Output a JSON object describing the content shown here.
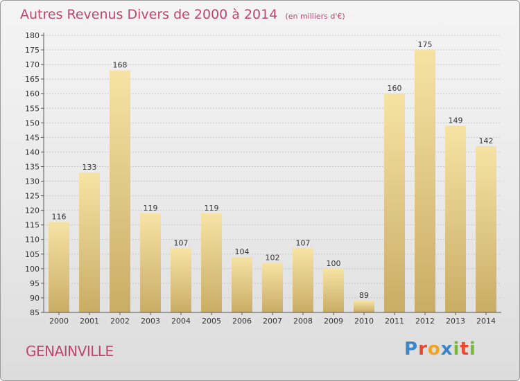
{
  "title": {
    "main": "Autres Revenus Divers de 2000 à 2014",
    "unit": "(en milliers d'€)"
  },
  "location": "GENAINVILLE",
  "logo": {
    "letters": [
      "P",
      "r",
      "o",
      "x",
      "i",
      "t",
      "i"
    ],
    "colors": [
      "#3a86c8",
      "#e8492c",
      "#f3a21f",
      "#3a86c8",
      "#7ab83c",
      "#e8492c",
      "#7ab83c"
    ]
  },
  "colors": {
    "title": "#c0446e",
    "bar_light": "#f6e3a4",
    "bar_dark": "#c9ad66",
    "axis": "#555555",
    "grid": "#c8c8c8"
  },
  "chart_data": {
    "type": "bar",
    "title": "Autres Revenus Divers de 2000 à 2014",
    "subtitle": "(en milliers d'€)",
    "xlabel": "",
    "ylabel": "",
    "categories": [
      "2000",
      "2001",
      "2002",
      "2003",
      "2004",
      "2005",
      "2006",
      "2007",
      "2008",
      "2009",
      "2010",
      "2011",
      "2012",
      "2013",
      "2014"
    ],
    "values": [
      116,
      133,
      168,
      119,
      107,
      119,
      104,
      102,
      107,
      100,
      89,
      160,
      175,
      149,
      142
    ],
    "ylim": [
      85,
      180
    ],
    "yticks": [
      85,
      90,
      95,
      100,
      105,
      110,
      115,
      120,
      125,
      130,
      135,
      140,
      145,
      150,
      155,
      160,
      165,
      170,
      175,
      180
    ],
    "grid": true,
    "legend": "none"
  }
}
